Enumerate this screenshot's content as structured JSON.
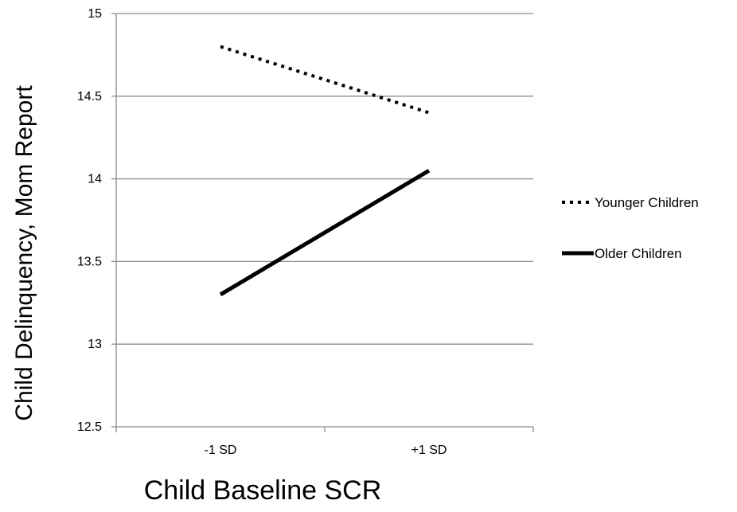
{
  "chart_data": {
    "type": "line",
    "title": "",
    "xlabel": "Child Baseline SCR",
    "ylabel": "Child Delinquency, Mom Report",
    "categories": [
      "-1 SD",
      "+1 SD"
    ],
    "ylim": [
      12.5,
      15
    ],
    "yticks": [
      "12.5",
      "13",
      "13.5",
      "14",
      "14.5",
      "15"
    ],
    "grid": "horizontal",
    "legend_position": "right",
    "series": [
      {
        "name": "Younger Children",
        "values": [
          14.8,
          14.4
        ],
        "style": "dotted",
        "color": "#000000"
      },
      {
        "name": "Older Children",
        "values": [
          13.3,
          14.05
        ],
        "style": "solid",
        "color": "#000000"
      }
    ]
  }
}
